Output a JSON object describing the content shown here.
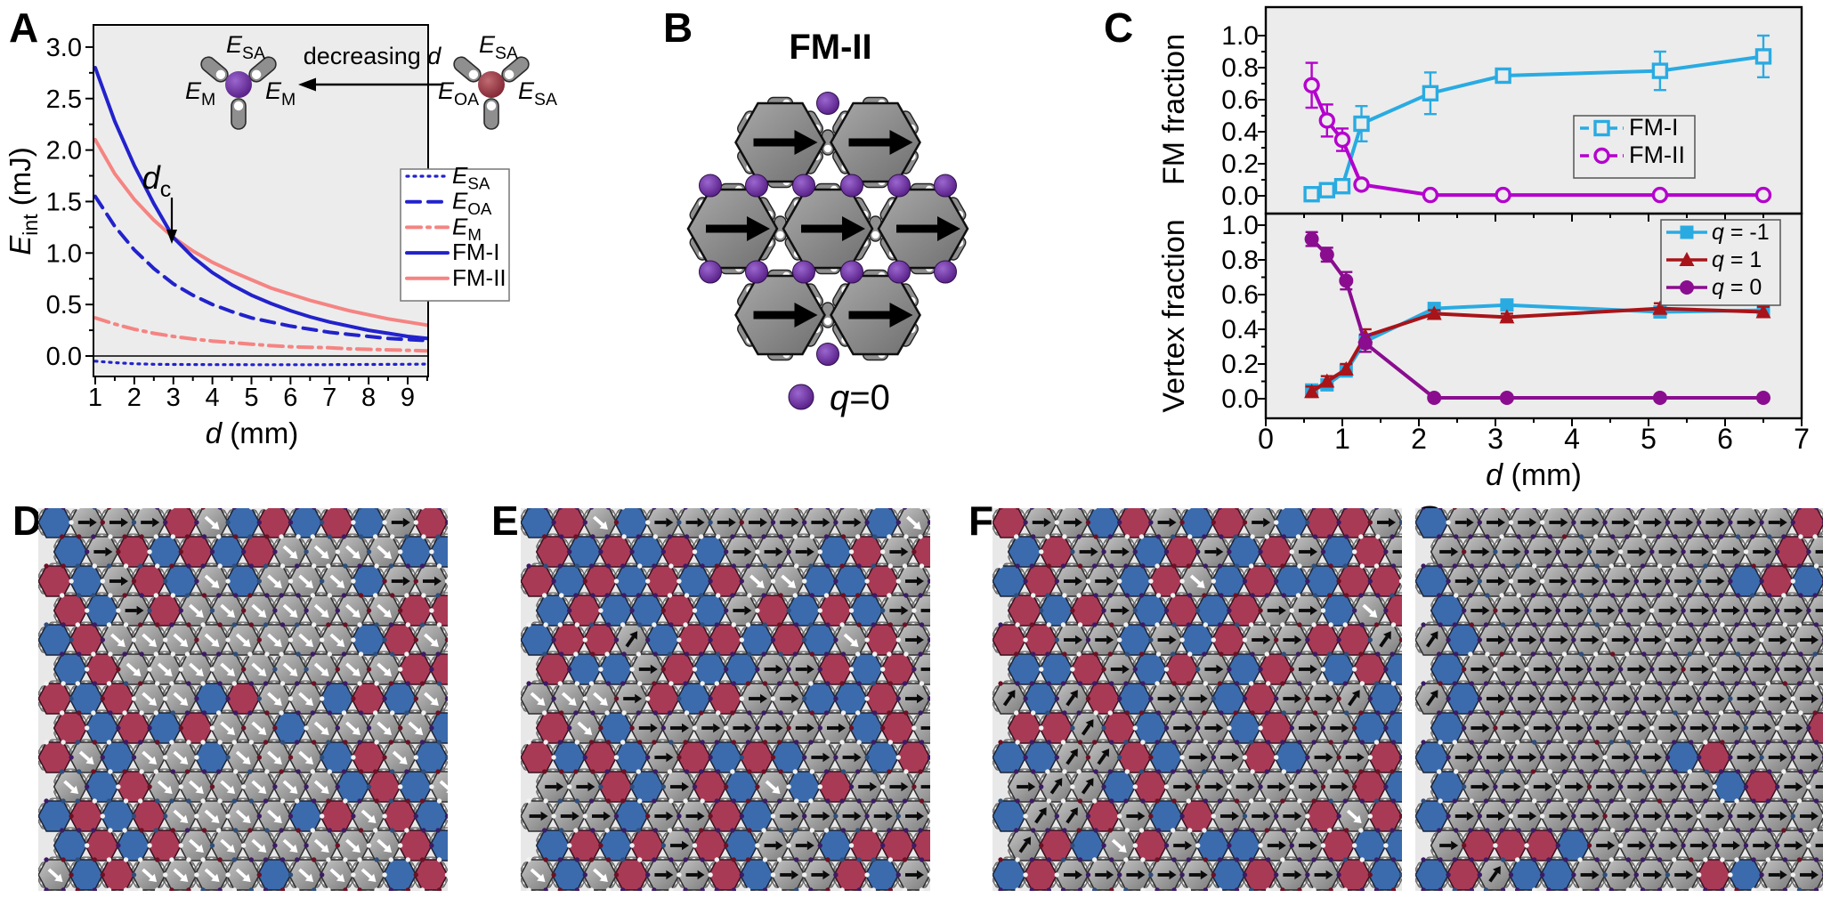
{
  "colors": {
    "plot_bg": "#ececec",
    "lattice_bg": "#e8e8e8",
    "blue": "#2222cc",
    "salmon": "#f58482",
    "cyan": "#29abe2",
    "magenta": "#b400cd",
    "darkred": "#a81419",
    "purple": "#8a0d8f",
    "hex_blue": "#3b6bad",
    "hex_red": "#a93a55",
    "capsule_gray": "#8f8f8f",
    "sphere_purple_dark": "#50187f",
    "sphere_purple_light": "#9b66cf",
    "sphere_red_dark": "#7c1f2d",
    "sphere_red_light": "#c06b72"
  },
  "panel_a": {
    "label": "A",
    "ylabel": {
      "base": "E",
      "sub": "int",
      "unit": " (mJ)"
    },
    "xlabel": {
      "base": "d",
      "unit": " (mm)"
    },
    "x_ticks": [
      "1",
      "2",
      "3",
      "4",
      "5",
      "6",
      "7",
      "8",
      "9"
    ],
    "y_ticks": [
      "0.0",
      "0.5",
      "1.0",
      "1.5",
      "2.0",
      "2.5",
      "3.0"
    ],
    "dc": {
      "base": "d",
      "sub": "c"
    },
    "inset": {
      "arrow_pre": "decreasing ",
      "arrow_var": "d",
      "left_labels": [
        {
          "base": "E",
          "sub": "SA",
          "pos": "top"
        },
        {
          "base": "E",
          "sub": "M",
          "pos": "left"
        },
        {
          "base": "E",
          "sub": "M",
          "pos": "right"
        }
      ],
      "right_labels": [
        {
          "base": "E",
          "sub": "SA",
          "pos": "top"
        },
        {
          "base": "E",
          "sub": "OA",
          "pos": "left"
        },
        {
          "base": "E",
          "sub": "SA",
          "pos": "right"
        }
      ]
    },
    "legend": [
      {
        "base": "E",
        "sub": "SA",
        "style": "esa"
      },
      {
        "base": "E",
        "sub": "OA",
        "style": "eoa"
      },
      {
        "base": "E",
        "sub": "M",
        "style": "em"
      },
      {
        "base": "FM-I",
        "sub": "",
        "style": "fm1"
      },
      {
        "base": "FM-II",
        "sub": "",
        "style": "fm2"
      }
    ]
  },
  "panel_b": {
    "label": "B",
    "title": "FM-II",
    "legend": {
      "var": "q",
      "rest": "=0"
    }
  },
  "panel_c": {
    "label": "C",
    "xlabel": {
      "base": "d",
      "unit": " (mm)"
    },
    "x_ticks": [
      "0",
      "1",
      "2",
      "3",
      "4",
      "5",
      "6",
      "7"
    ],
    "y_ticks": [
      "0.0",
      "0.2",
      "0.4",
      "0.6",
      "0.8",
      "1.0"
    ],
    "top": {
      "ylabel": "FM fraction",
      "legend": [
        {
          "label": "FM-I",
          "series": "FM-I"
        },
        {
          "label": "FM-II",
          "series": "FM-II"
        }
      ]
    },
    "bottom": {
      "ylabel": "Vertex fraction",
      "legend": [
        {
          "var": "q",
          "rest": " = -1",
          "series": "q-1"
        },
        {
          "var": "q",
          "rest": " = 1",
          "series": "q+1"
        },
        {
          "var": "q",
          "rest": " = 0",
          "series": "q0"
        }
      ]
    }
  },
  "chart_data": [
    {
      "type": "line",
      "panel": "A",
      "xlabel": "d (mm)",
      "ylabel": "E_int (mJ)",
      "xlim": [
        0.9,
        9.7
      ],
      "ylim": [
        -0.2,
        3.05
      ],
      "legend_position": "middle-right",
      "x": [
        1,
        1.5,
        2,
        2.5,
        3,
        3.5,
        4,
        4.5,
        5,
        5.5,
        6,
        6.5,
        7,
        7.5,
        8,
        8.5,
        9,
        9.5
      ],
      "series": [
        {
          "name": "E_SA",
          "style": "esa",
          "values": [
            -0.05,
            -0.065,
            -0.075,
            -0.08,
            -0.082,
            -0.083,
            -0.084,
            -0.084,
            -0.085,
            -0.085,
            -0.085,
            -0.085,
            -0.084,
            -0.083,
            -0.082,
            -0.081,
            -0.08,
            -0.079
          ]
        },
        {
          "name": "E_OA",
          "style": "eoa",
          "values": [
            1.55,
            1.26,
            1.03,
            0.85,
            0.7,
            0.59,
            0.5,
            0.43,
            0.37,
            0.33,
            0.29,
            0.26,
            0.23,
            0.21,
            0.19,
            0.17,
            0.16,
            0.15
          ]
        },
        {
          "name": "E_M",
          "style": "em",
          "values": [
            0.37,
            0.31,
            0.26,
            0.22,
            0.19,
            0.165,
            0.145,
            0.13,
            0.115,
            0.1,
            0.09,
            0.085,
            0.08,
            0.07,
            0.065,
            0.06,
            0.055,
            0.05
          ]
        },
        {
          "name": "FM-II",
          "style": "fm2",
          "values": [
            2.1,
            1.77,
            1.52,
            1.32,
            1.15,
            1.02,
            0.91,
            0.82,
            0.74,
            0.66,
            0.6,
            0.54,
            0.49,
            0.44,
            0.4,
            0.36,
            0.33,
            0.3
          ]
        },
        {
          "name": "FM-I",
          "style": "fm1",
          "values": [
            2.8,
            2.28,
            1.85,
            1.48,
            1.15,
            0.96,
            0.81,
            0.69,
            0.59,
            0.51,
            0.44,
            0.38,
            0.33,
            0.29,
            0.25,
            0.22,
            0.19,
            0.17
          ]
        }
      ],
      "annotation": {
        "text": "d_c",
        "x": 3,
        "y": 1.15
      }
    },
    {
      "type": "scatter-line",
      "panel": "C-top",
      "ylabel": "FM fraction",
      "xlim": [
        0,
        7.1
      ],
      "ylim": [
        -0.08,
        1.12
      ],
      "x": [
        0.6,
        0.8,
        1.0,
        1.25,
        2.15,
        3.1,
        5.15,
        6.5
      ],
      "series": [
        {
          "name": "FM-I",
          "marker": "osquare",
          "color_key": "cyan",
          "values": [
            0.01,
            0.035,
            0.06,
            0.45,
            0.64,
            0.75,
            0.78,
            0.87
          ],
          "err": [
            0.02,
            0.02,
            0.03,
            0.11,
            0.13,
            0.03,
            0.12,
            0.13
          ]
        },
        {
          "name": "FM-II",
          "marker": "ocircle",
          "color_key": "magenta",
          "values": [
            0.69,
            0.47,
            0.35,
            0.07,
            0.005,
            0.005,
            0.005,
            0.005
          ],
          "err": [
            0.14,
            0.1,
            0.07,
            0.03,
            0,
            0,
            0,
            0
          ]
        }
      ]
    },
    {
      "type": "scatter-line",
      "panel": "C-bottom",
      "ylabel": "Vertex fraction",
      "xlim": [
        0,
        7.1
      ],
      "ylim": [
        -0.08,
        1.12
      ],
      "x": [
        0.6,
        0.8,
        1.05,
        1.3,
        2.2,
        3.15,
        5.15,
        6.5
      ],
      "series": [
        {
          "name": "q-1",
          "marker": "fsquare",
          "color_key": "cyan",
          "values": [
            0.05,
            0.08,
            0.16,
            0.33,
            0.52,
            0.54,
            0.5,
            0.51
          ],
          "err": [
            0.03,
            0.03,
            0.03,
            0.04,
            0.02,
            0.02,
            0.03,
            0.03
          ]
        },
        {
          "name": "q+1",
          "marker": "ftri",
          "color_key": "darkred",
          "values": [
            0.04,
            0.1,
            0.17,
            0.36,
            0.49,
            0.47,
            0.52,
            0.5
          ],
          "err": [
            0.03,
            0.03,
            0.03,
            0.04,
            0.02,
            0.02,
            0.03,
            0.03
          ]
        },
        {
          "name": "q0",
          "marker": "fcircle",
          "color_key": "purple",
          "values": [
            0.92,
            0.83,
            0.68,
            0.32,
            0.005,
            0.005,
            0.005,
            0.005
          ],
          "err": [
            0.04,
            0.04,
            0.05,
            0.05,
            0,
            0,
            0,
            0
          ]
        }
      ]
    }
  ],
  "lattices": {
    "cell_types": {
      "B": "blue-hexagon",
      "R": "red-hexagon",
      "A": "gray-hexagon-black-right-arrow",
      "W": "gray-hexagon-white-diagonal-arrow",
      "D": "gray-hexagon-black-diagonal-arrow"
    },
    "panels": [
      {
        "label": "D",
        "seed": 7,
        "dot_weights": [
          [
            "#3d1a66",
            0.3
          ],
          [
            "#6e1024",
            0.22
          ],
          [
            "#2e4e7e",
            0.16
          ],
          [
            "#f2f2f2",
            0.32
          ]
        ],
        "grid": [
          "BAAARWBRBRBAR",
          "BARBRBRWWWWBB",
          "RBARBWBWWWBAA",
          "RBARWWWWWWWRR",
          "BRWWWWWWWWBRW",
          "BRWWWWWWWWWRR",
          "RBRWWBRWWBRBW",
          "RBRBRWWBWWWWB",
          "RWBWWBWWWBRWB",
          "WBRWWWWWWBRBW",
          "BRBRWWWWBRWRB",
          "BRBRWWWWWWWRB",
          "WBRWWWWBWWWBR"
        ]
      },
      {
        "label": "E",
        "seed": 13,
        "dot_weights": [
          [
            "#3d1a66",
            0.38
          ],
          [
            "#6e1024",
            0.18
          ],
          [
            "#2e4e7e",
            0.12
          ],
          [
            "#f2f2f2",
            0.32
          ]
        ],
        "grid": [
          "BRWBAAAAAAABW",
          "RBRBRBAAABRAR",
          "RBRBRBRWWBBRA",
          "BRBBRBARBRBAA",
          "BRRDBRRBRBWRA",
          "RBBARBBAARBRA",
          "WWWARBRAABBRA",
          "RWBAAAAAAABRA",
          "RBRBARBRBAABR",
          "AARBARBWBRAAA",
          "AAABAARBAAAAA",
          "BRBRARBAABRRR",
          "WBWRAARBAARBA"
        ]
      },
      {
        "label": "F",
        "seed": 21,
        "dot_weights": [
          [
            "#3d1a66",
            0.42
          ],
          [
            "#6e1024",
            0.16
          ],
          [
            "#2e4e7e",
            0.1
          ],
          [
            "#f2f2f2",
            0.32
          ]
        ],
        "grid": [
          "RAABRABRABRRA",
          "BRAABRABRABRA",
          "BRAABRWBRBBRR",
          "RBRABRBRAABWR",
          "RRAABABRAARRD",
          "BBRABRABRABRB",
          "DBDRBAABRAADB",
          "RRDRBAABRAABB",
          "BBDDRBAARBAAR",
          "ADDBRAAAAAARB",
          "BDDRABRAAARWR",
          "DRBWRABBAARBB",
          "BRAAAAABRAARB"
        ]
      },
      {
        "label": "G",
        "seed": 42,
        "dot_weights": [
          [
            "#3d1a66",
            0.62
          ],
          [
            "#6e1024",
            0.06
          ],
          [
            "#2e4e7e",
            0.06
          ],
          [
            "#f2f2f2",
            0.26
          ]
        ],
        "grid": [
          "BAAAAAAAAAAAR",
          "AAAAAAAAAAARA",
          "BAAAAAAAAABRB",
          "BAAAAAAAAAAAA",
          "DBAAAAAAAAAAA",
          "BAAAAAAAAAAAA",
          "DBAAAAAAAAAAA",
          "BAAAAAAAAAAAR",
          "BAAAAAAABRAAA",
          "BAAAAAAAABRAA",
          "BAAAAAAAAAAAA",
          "ARRRBAAAAAAAA",
          "BRDBBAAAARBAA"
        ]
      }
    ]
  }
}
